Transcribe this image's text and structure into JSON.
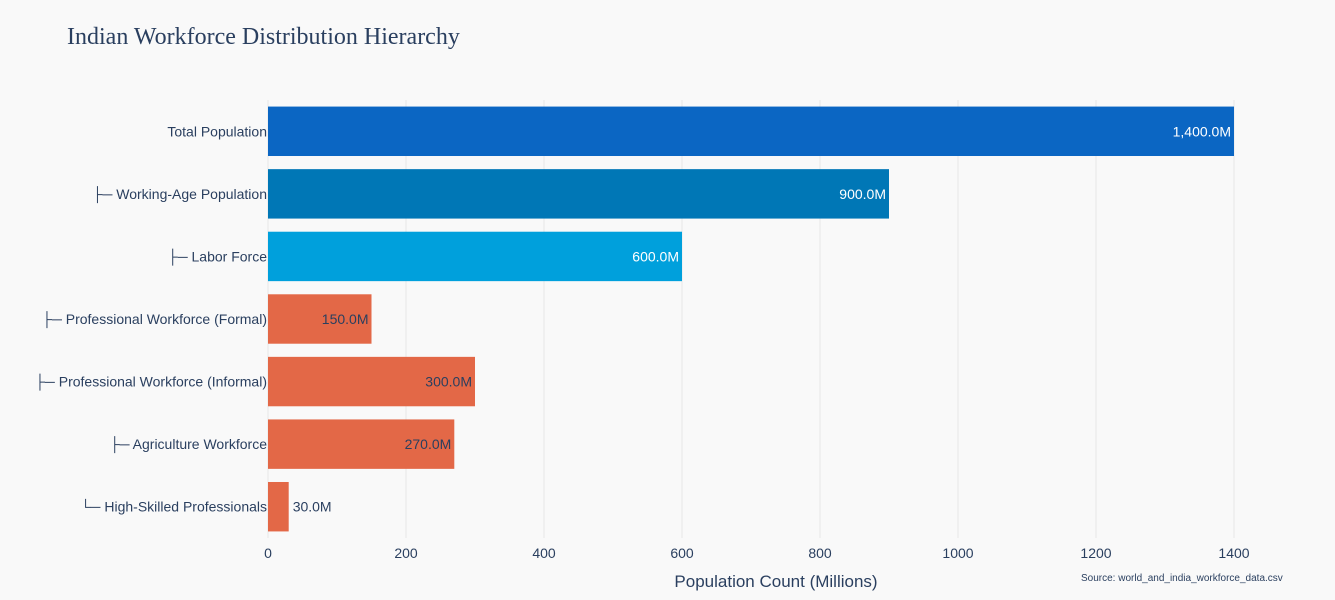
{
  "title": "Indian Workforce Distribution Hierarchy",
  "source": "Source: world_and_india_workforce_data.csv",
  "chart_data": {
    "type": "bar",
    "orientation": "horizontal",
    "title": "Indian Workforce Distribution Hierarchy",
    "xlabel": "Population Count (Millions)",
    "ylabel": "",
    "xlim": [
      0,
      1400
    ],
    "xticks": [
      0,
      200,
      400,
      600,
      800,
      1000,
      1200,
      1400
    ],
    "grid": true,
    "categories": [
      "Total Population",
      "├─ Working-Age Population",
      "├─ Labor Force",
      "├─ Professional Workforce (Formal)",
      "├─ Professional Workforce (Informal)",
      "├─ Agriculture Workforce",
      "└─ High-Skilled Professionals"
    ],
    "values": [
      1400,
      900,
      600,
      150,
      300,
      270,
      30
    ],
    "data_labels": [
      "1,400.0M",
      "900.0M",
      "600.0M",
      "150.0M",
      "300.0M",
      "270.0M",
      "30.0M"
    ],
    "colors": [
      "#0b66c3",
      "#0077b6",
      "#00a0dc",
      "#e36847",
      "#e36847",
      "#e36847",
      "#e36847"
    ]
  }
}
